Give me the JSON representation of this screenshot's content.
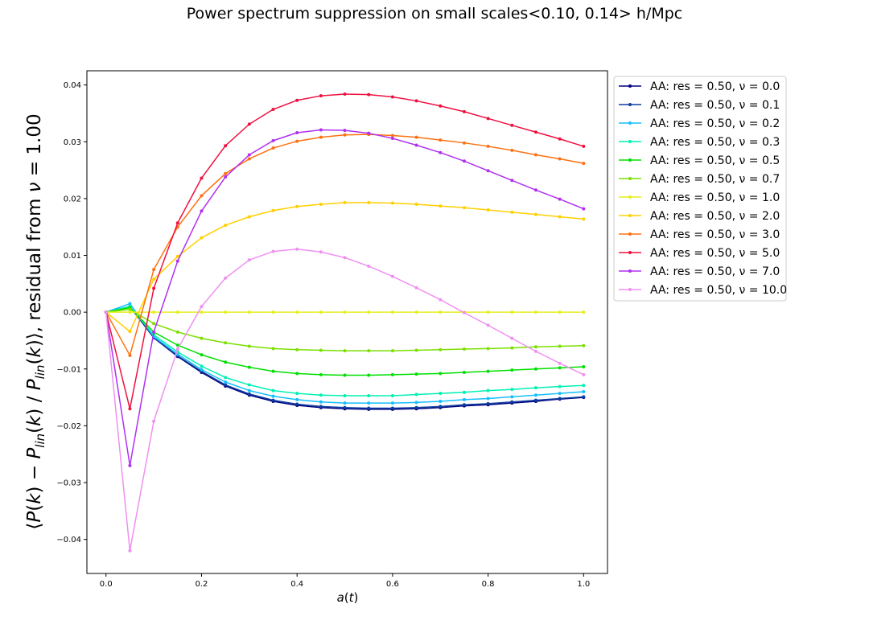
{
  "chart_data": {
    "type": "line",
    "title": "Power spectrum suppression on small scales<0.10, 0.14> h/Mpc",
    "xlabel": "a(t)",
    "ylabel": "⟨(P(k) − P_lin(k)) / P_lin(k)⟩, residual from ν = 1.00",
    "xlim": [
      -0.04,
      1.05
    ],
    "ylim": [
      -0.046,
      0.0425
    ],
    "xticks": [
      0.0,
      0.2,
      0.4,
      0.6,
      0.8,
      1.0
    ],
    "xtick_labels": [
      "0.0",
      "0.2",
      "0.4",
      "0.6",
      "0.8",
      "1.0"
    ],
    "yticks": [
      -0.04,
      -0.03,
      -0.02,
      -0.01,
      0.0,
      0.01,
      0.02,
      0.03,
      0.04
    ],
    "ytick_labels": [
      "−0.04",
      "−0.03",
      "−0.02",
      "−0.01",
      "0.00",
      "0.01",
      "0.02",
      "0.03",
      "0.04"
    ],
    "grid": false,
    "legend_position": "outside-right-top",
    "x": [
      0.0,
      0.05,
      0.1,
      0.15,
      0.2,
      0.25,
      0.3,
      0.35,
      0.4,
      0.45,
      0.5,
      0.55,
      0.6,
      0.65,
      0.7,
      0.75,
      0.8,
      0.85,
      0.9,
      0.95,
      1.0
    ],
    "series": [
      {
        "name": "AA: res = 0.50, ν = 0.0",
        "color": "#000080",
        "values": [
          0.0,
          0.001,
          -0.0045,
          -0.0078,
          -0.0106,
          -0.013,
          -0.0146,
          -0.0157,
          -0.0164,
          -0.0168,
          -0.017,
          -0.0171,
          -0.0171,
          -0.017,
          -0.0168,
          -0.0165,
          -0.0163,
          -0.016,
          -0.0157,
          -0.0153,
          -0.015
        ]
      },
      {
        "name": "AA: res = 0.50, ν = 0.1",
        "color": "#0e3e9e",
        "values": [
          0.0,
          0.001,
          -0.0044,
          -0.0077,
          -0.0104,
          -0.0128,
          -0.0144,
          -0.0155,
          -0.0162,
          -0.0166,
          -0.0168,
          -0.0169,
          -0.0169,
          -0.0168,
          -0.0166,
          -0.0163,
          -0.0161,
          -0.0158,
          -0.0155,
          -0.0152,
          -0.0149
        ]
      },
      {
        "name": "AA: res = 0.50, ν = 0.2",
        "color": "#16bfff",
        "values": [
          0.0,
          0.0015,
          -0.0043,
          -0.0074,
          -0.0101,
          -0.0123,
          -0.0138,
          -0.0148,
          -0.0154,
          -0.0158,
          -0.016,
          -0.016,
          -0.016,
          -0.0159,
          -0.0157,
          -0.0154,
          -0.0152,
          -0.0149,
          -0.0146,
          -0.0143,
          -0.014
        ]
      },
      {
        "name": "AA: res = 0.50, ν = 0.3",
        "color": "#00f2b2",
        "values": [
          0.0,
          0.001,
          -0.004,
          -0.007,
          -0.0095,
          -0.0115,
          -0.0128,
          -0.0138,
          -0.0143,
          -0.0146,
          -0.0147,
          -0.0147,
          -0.0147,
          -0.0145,
          -0.0143,
          -0.0141,
          -0.0138,
          -0.0136,
          -0.0133,
          -0.0131,
          -0.0129
        ]
      },
      {
        "name": "AA: res = 0.50, ν = 0.5",
        "color": "#00e000",
        "values": [
          0.0,
          0.0008,
          -0.0035,
          -0.0058,
          -0.0075,
          -0.0088,
          -0.0097,
          -0.0104,
          -0.0108,
          -0.011,
          -0.0111,
          -0.0111,
          -0.011,
          -0.0109,
          -0.0108,
          -0.0106,
          -0.0104,
          -0.0102,
          -0.01,
          -0.0098,
          -0.0096
        ]
      },
      {
        "name": "AA: res = 0.50, ν = 0.7",
        "color": "#7be000",
        "values": [
          0.0,
          0.0005,
          -0.002,
          -0.0035,
          -0.0046,
          -0.0054,
          -0.006,
          -0.0064,
          -0.0066,
          -0.0067,
          -0.0068,
          -0.0068,
          -0.0068,
          -0.0067,
          -0.0066,
          -0.0065,
          -0.0064,
          -0.0063,
          -0.0061,
          -0.006,
          -0.0059
        ]
      },
      {
        "name": "AA: res = 0.50, ν = 1.0",
        "color": "#e7ee1f",
        "values": [
          0.0,
          0.0,
          0.0,
          0.0,
          0.0,
          0.0,
          0.0,
          0.0,
          0.0,
          0.0,
          0.0,
          0.0,
          0.0,
          0.0,
          0.0,
          0.0,
          0.0,
          0.0,
          0.0,
          0.0,
          0.0
        ]
      },
      {
        "name": "AA: res = 0.50, ν = 2.0",
        "color": "#ffd000",
        "values": [
          0.0,
          -0.0034,
          0.0058,
          0.0098,
          0.0131,
          0.0153,
          0.0168,
          0.0179,
          0.0186,
          0.019,
          0.0193,
          0.0193,
          0.0192,
          0.019,
          0.0187,
          0.0184,
          0.018,
          0.0176,
          0.0172,
          0.0168,
          0.0164
        ]
      },
      {
        "name": "AA: res = 0.50, ν = 3.0",
        "color": "#ff7010",
        "values": [
          0.0,
          -0.0076,
          0.0075,
          0.015,
          0.0205,
          0.0244,
          0.027,
          0.0289,
          0.0301,
          0.0308,
          0.0312,
          0.0313,
          0.0311,
          0.0308,
          0.0303,
          0.0298,
          0.0292,
          0.0285,
          0.0277,
          0.027,
          0.0262
        ]
      },
      {
        "name": "AA: res = 0.50, ν = 5.0",
        "color": "#f01040",
        "values": [
          0.0,
          -0.017,
          0.0042,
          0.0157,
          0.0236,
          0.0293,
          0.0331,
          0.0357,
          0.0373,
          0.0381,
          0.0384,
          0.0383,
          0.0379,
          0.0372,
          0.0363,
          0.0353,
          0.0341,
          0.0329,
          0.0317,
          0.0305,
          0.0292
        ]
      },
      {
        "name": "AA: res = 0.50, ν = 7.0",
        "color": "#b030f0",
        "values": [
          0.0,
          -0.027,
          -0.0035,
          0.009,
          0.0178,
          0.0238,
          0.0277,
          0.0302,
          0.0316,
          0.0321,
          0.032,
          0.0315,
          0.0306,
          0.0294,
          0.0281,
          0.0266,
          0.0249,
          0.0232,
          0.0215,
          0.0199,
          0.0182
        ]
      },
      {
        "name": "AA: res = 0.50, ν = 10.0",
        "color": "#f090f0",
        "values": [
          0.0,
          -0.042,
          -0.0192,
          -0.0065,
          0.001,
          0.006,
          0.0092,
          0.0107,
          0.0111,
          0.0106,
          0.0096,
          0.0081,
          0.0063,
          0.0043,
          0.0022,
          -0.0001,
          -0.0023,
          -0.0046,
          -0.0069,
          -0.009,
          -0.011
        ]
      }
    ]
  }
}
